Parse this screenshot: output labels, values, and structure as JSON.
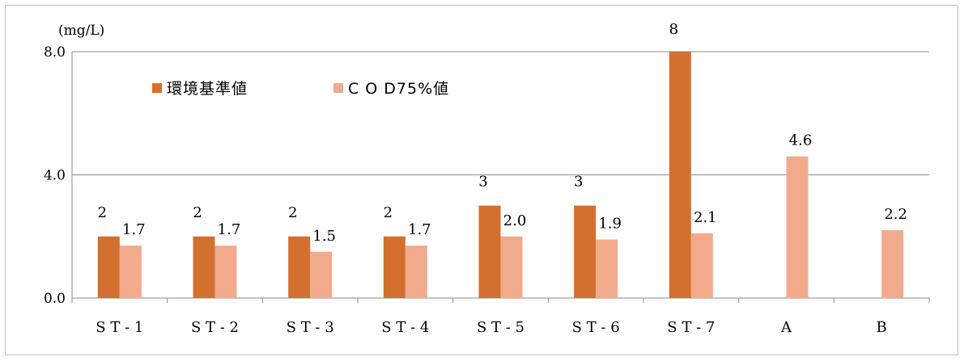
{
  "unit_label": "(mg/L)",
  "chart_data": {
    "type": "bar",
    "categories": [
      "S T - 1",
      "S T - 2",
      "S T - 3",
      "S T - 4",
      "S T - 5",
      "S T - 6",
      "S T - 7",
      "A",
      "B"
    ],
    "series": [
      {
        "name": "環境基準値",
        "color": "#D4702F",
        "values": [
          2,
          2,
          2,
          2,
          3,
          3,
          8,
          null,
          null
        ],
        "labels": [
          "2",
          "2",
          "2",
          "2",
          "3",
          "3",
          "8",
          "",
          ""
        ]
      },
      {
        "name": "C O D75%値",
        "color": "#F2AA8C",
        "values": [
          1.7,
          1.7,
          1.5,
          1.7,
          2.0,
          1.9,
          2.1,
          4.6,
          2.2
        ],
        "labels": [
          "1.7",
          "1.7",
          "1.5",
          "1.7",
          "2.0",
          "1.9",
          "2.1",
          "4.6",
          "2.2"
        ]
      }
    ],
    "ylim": [
      0,
      8
    ],
    "yticks": [
      "0.0",
      "4.0",
      "8.0"
    ],
    "grid": true,
    "legend": "top-left"
  }
}
